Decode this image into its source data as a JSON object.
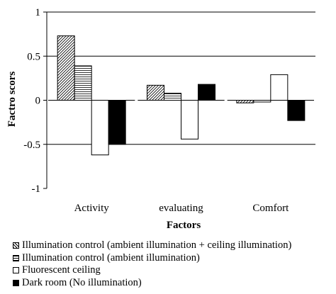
{
  "chart_data": {
    "type": "bar",
    "categories": [
      "Activity",
      "evaluating",
      "Comfort"
    ],
    "series": [
      {
        "name": "Illumination control (ambient illumination + ceiling illumination)",
        "values": [
          0.73,
          0.17,
          -0.03
        ],
        "pattern": "diagonal"
      },
      {
        "name": "Illumination control (ambient illumination)",
        "values": [
          0.39,
          0.08,
          -0.02
        ],
        "pattern": "horizontal"
      },
      {
        "name": "Fluorescent ceiling",
        "values": [
          -0.62,
          -0.44,
          0.29
        ],
        "pattern": "white"
      },
      {
        "name": "Dark room (No illumination)",
        "values": [
          -0.5,
          0.18,
          -0.23
        ],
        "pattern": "black"
      }
    ],
    "xlabel": "Factors",
    "ylabel": "Factro scors",
    "ylim": [
      -1,
      1
    ],
    "yticks": [
      {
        "value": 1,
        "label": "1"
      },
      {
        "value": 0.5,
        "label": "0.5"
      },
      {
        "value": 0,
        "label": "0"
      },
      {
        "value": -0.5,
        "label": "-0.5"
      },
      {
        "value": -1,
        "label": "-1"
      }
    ],
    "gridlines": [
      1,
      0.5,
      -0.5
    ],
    "grid": true,
    "legend": "bottom"
  }
}
